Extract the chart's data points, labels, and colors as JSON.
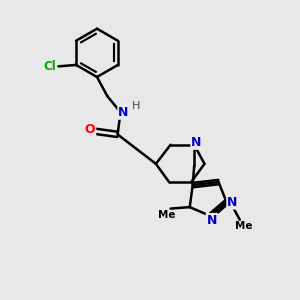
{
  "bg_color": "#e8e8e8",
  "atom_colors": {
    "N": "#0000cc",
    "O": "#ff0000",
    "Cl": "#00aa00",
    "H": "#444444"
  },
  "bond_color": "#000000",
  "bond_width": 1.8
}
